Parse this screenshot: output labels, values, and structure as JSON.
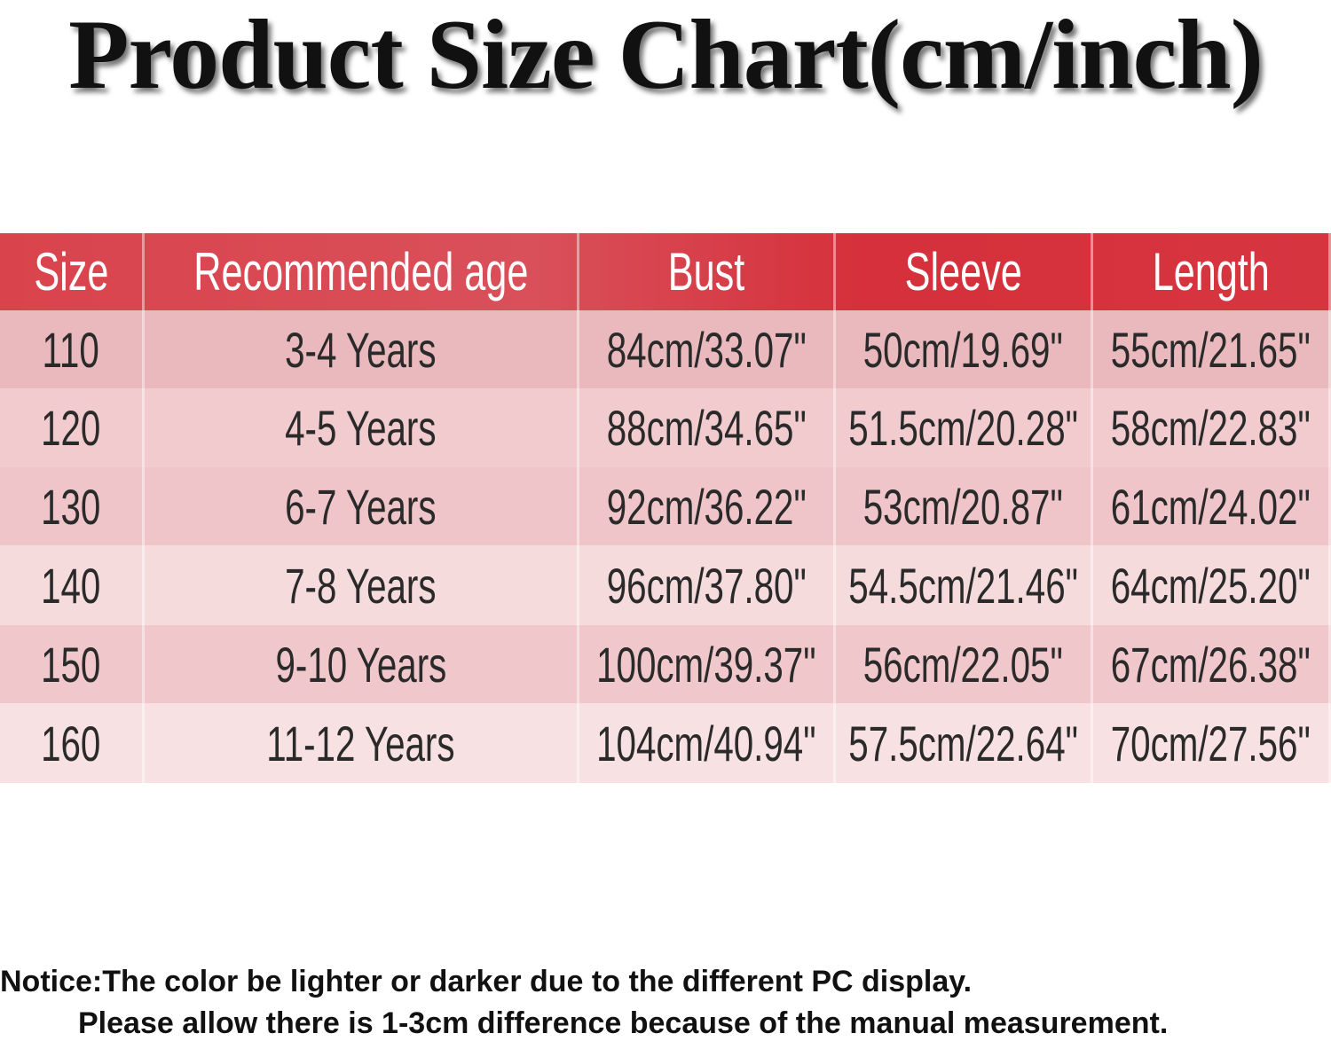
{
  "title": "Product Size Chart(cm/inch)",
  "table": {
    "header": [
      "Size",
      "Recommended age",
      "Bust",
      "Sleeve",
      "Length"
    ],
    "rows": [
      [
        "110",
        "3-4 Years",
        "84cm/33.07\"",
        "50cm/19.69\"",
        "55cm/21.65\""
      ],
      [
        "120",
        "4-5 Years",
        "88cm/34.65\"",
        "51.5cm/20.28\"",
        "58cm/22.83\""
      ],
      [
        "130",
        "6-7 Years",
        "92cm/36.22\"",
        "53cm/20.87\"",
        "61cm/24.02\""
      ],
      [
        "140",
        "7-8 Years",
        "96cm/37.80\"",
        "54.5cm/21.46\"",
        "64cm/25.20\""
      ],
      [
        "150",
        "9-10 Years",
        "100cm/39.37\"",
        "56cm/22.05\"",
        "67cm/26.38\""
      ],
      [
        "160",
        "11-12 Years",
        "104cm/40.94\"",
        "57.5cm/22.64\"",
        "70cm/27.56\""
      ]
    ]
  },
  "notice": [
    "Notice:The color be lighter or darker due to the different PC display.",
    "Please allow there is 1-3cm difference because of the manual measurement."
  ]
}
